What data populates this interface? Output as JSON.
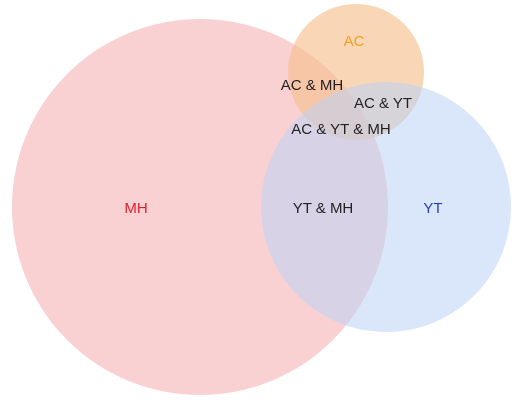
{
  "sets": [
    {
      "key": "mh",
      "label": "MH",
      "fill": "#f4a3a8",
      "label_color": "#e0202a"
    },
    {
      "key": "ac",
      "label": "AC",
      "fill": "#f6c08f",
      "label_color": "#f0a020"
    },
    {
      "key": "yt",
      "label": "YT",
      "fill": "#bcd3f6",
      "label_color": "#2a3fb0"
    }
  ],
  "intersections": {
    "ac_mh": "AC & MH",
    "ac_yt": "AC & YT",
    "ac_yt_mh": "AC & YT & MH",
    "yt_mh": "YT & MH"
  },
  "intersection_label_color": "#222222"
}
